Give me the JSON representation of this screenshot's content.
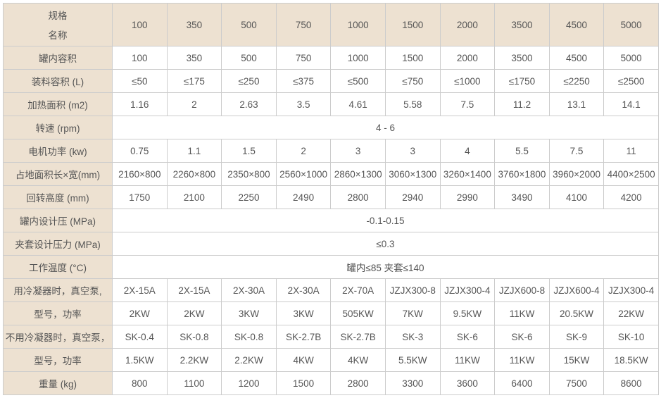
{
  "header": {
    "line1": "规格",
    "line2": "名称",
    "cols": [
      "100",
      "350",
      "500",
      "750",
      "1000",
      "1500",
      "2000",
      "3500",
      "4500",
      "5000"
    ]
  },
  "rows": [
    {
      "label": "罐内容积",
      "cells": [
        "100",
        "350",
        "500",
        "750",
        "1000",
        "1500",
        "2000",
        "3500",
        "4500",
        "5000"
      ]
    },
    {
      "label": "装料容积 (L)",
      "cells": [
        "≤50",
        "≤175",
        "≤250",
        "≤375",
        "≤500",
        "≤750",
        "≤1000",
        "≤1750",
        "≤2250",
        "≤2500"
      ]
    },
    {
      "label": "加热面积 (m2)",
      "cells": [
        "1.16",
        "2",
        "2.63",
        "3.5",
        "4.61",
        "5.58",
        "7.5",
        "11.2",
        "13.1",
        "14.1"
      ]
    },
    {
      "label": "转速 (rpm)",
      "span": "4 - 6"
    },
    {
      "label": "电机功率 (kw)",
      "cells": [
        "0.75",
        "1.1",
        "1.5",
        "2",
        "3",
        "3",
        "4",
        "5.5",
        "7.5",
        "11"
      ]
    },
    {
      "label": "占地面积长×宽(mm)",
      "cells": [
        "2160×800",
        "2260×800",
        "2350×800",
        "2560×1000",
        "2860×1300",
        "3060×1300",
        "3260×1400",
        "3760×1800",
        "3960×2000",
        "4400×2500"
      ]
    },
    {
      "label": "回转高度 (mm)",
      "cells": [
        "1750",
        "2100",
        "2250",
        "2490",
        "2800",
        "2940",
        "2990",
        "3490",
        "4100",
        "4200"
      ]
    },
    {
      "label": "罐内设计压 (MPa)",
      "span": "-0.1-0.15"
    },
    {
      "label": "夹套设计压力 (MPa)",
      "span": "≤0.3"
    },
    {
      "label": "工作温度 (°C)",
      "span": "罐内≤85 夹套≤140"
    },
    {
      "label": "用冷凝器时，真空泵,",
      "cells": [
        "2X-15A",
        "2X-15A",
        "2X-30A",
        "2X-30A",
        "2X-70A",
        "JZJX300-8",
        "JZJX300-4",
        "JZJX600-8",
        "JZJX600-4",
        "JZJX300-4"
      ]
    },
    {
      "label": "型号，功率",
      "cells": [
        "2KW",
        "2KW",
        "3KW",
        "3KW",
        "505KW",
        "7KW",
        "9.5KW",
        "11KW",
        "20.5KW",
        "22KW"
      ]
    },
    {
      "label": "不用冷凝器时，真空泵，",
      "cells": [
        "SK-0.4",
        "SK-0.8",
        "SK-0.8",
        "SK-2.7B",
        "SK-2.7B",
        "SK-3",
        "SK-6",
        "SK-6",
        "SK-9",
        "SK-10"
      ]
    },
    {
      "label": "型号，功率",
      "cells": [
        "1.5KW",
        "2.2KW",
        "2.2KW",
        "4KW",
        "4KW",
        "5.5KW",
        "11KW",
        "11KW",
        "15KW",
        "18.5KW"
      ]
    },
    {
      "label": "重量 (kg)",
      "cells": [
        "800",
        "1100",
        "1200",
        "1500",
        "2800",
        "3300",
        "3600",
        "6400",
        "7500",
        "8600"
      ]
    }
  ],
  "colWidths": {
    "first": 155,
    "rest": 77.6
  }
}
